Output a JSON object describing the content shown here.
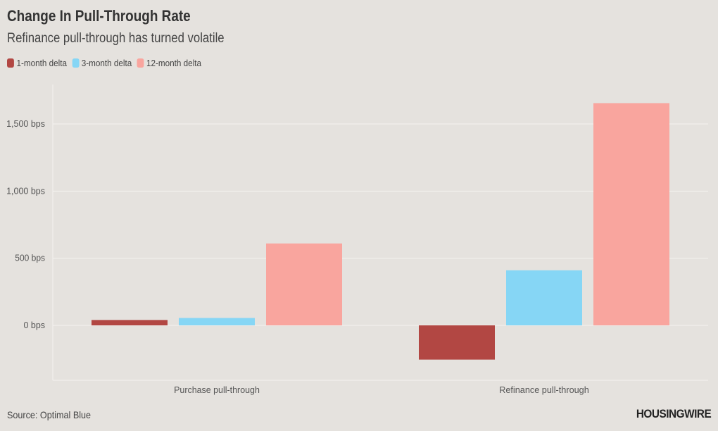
{
  "chart_data": {
    "type": "bar",
    "title": "Change In Pull-Through Rate",
    "subtitle": "Refinance pull-through has turned volatile",
    "categories": [
      "Purchase pull-through",
      "Refinance pull-through"
    ],
    "series": [
      {
        "name": "1-month delta",
        "color": "#b24743",
        "values": [
          40,
          -255
        ]
      },
      {
        "name": "3-month delta",
        "color": "#86d6f5",
        "values": [
          55,
          410
        ]
      },
      {
        "name": "12-month delta",
        "color": "#f9a59e",
        "values": [
          610,
          1655
        ]
      }
    ],
    "y_ticks": [
      {
        "value": 0,
        "label": "0 bps"
      },
      {
        "value": 500,
        "label": "500 bps"
      },
      {
        "value": 1000,
        "label": "1,000 bps"
      },
      {
        "value": 1500,
        "label": "1,500 bps"
      }
    ],
    "ylim": [
      -400,
      1800
    ],
    "grid": true,
    "legend_position": "top-left"
  },
  "source": "Source: Optimal Blue",
  "logo_text": "HOUSINGWIRE"
}
